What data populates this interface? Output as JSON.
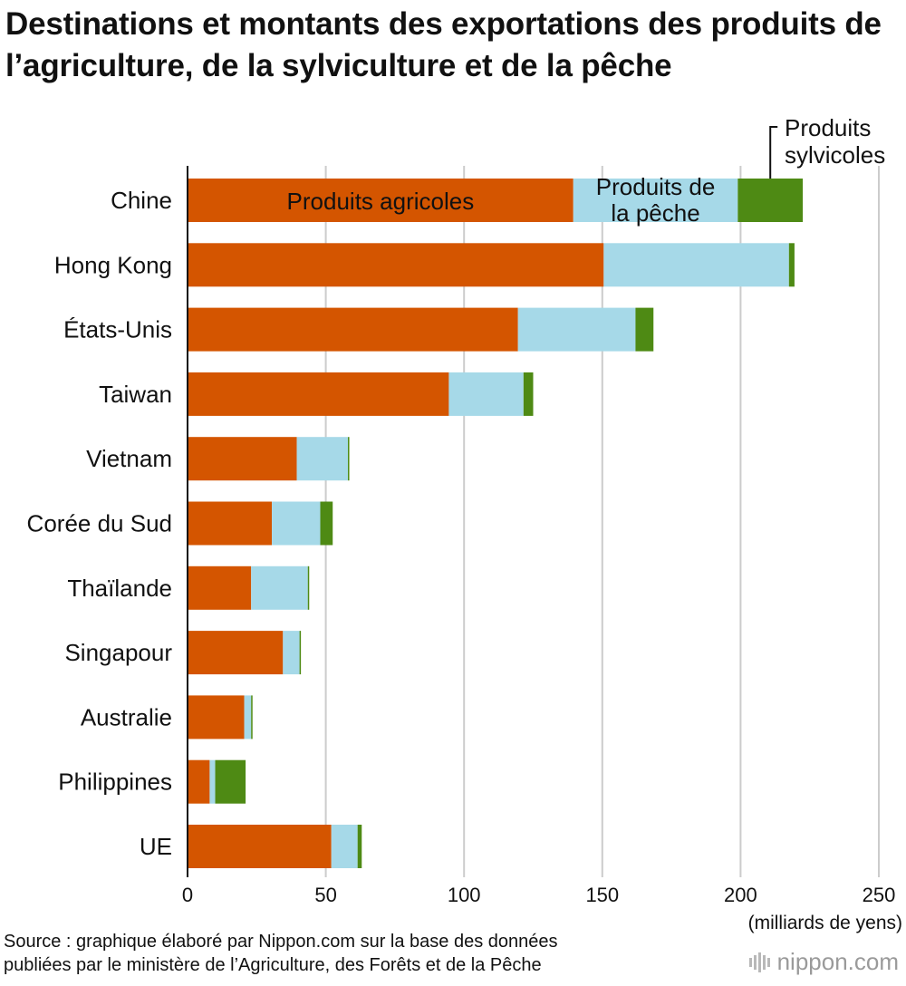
{
  "title": "Destinations et montants des exportations des produits de l’agriculture, de la sylviculture et de la pêche",
  "source_line1": "Source : graphique élaboré par Nippon.com sur la base des données",
  "source_line2": "publiées par le ministère de l’Agriculture, des Forêts et de la Pêche",
  "brand": "nippon.com",
  "colors": {
    "agricoles": "#D45500",
    "peche": "#A6D9E8",
    "sylvicoles": "#4E8A14",
    "grid": "#cccccc"
  },
  "chart_data": {
    "type": "bar",
    "orientation": "horizontal",
    "stacked": true,
    "categories": [
      "Chine",
      "Hong Kong",
      "États-Unis",
      "Taiwan",
      "Vietnam",
      "Corée du Sud",
      "Thaïlande",
      "Singapour",
      "Australie",
      "Philippines",
      "UE"
    ],
    "series": [
      {
        "name": "Produits agricoles",
        "color": "#D45500",
        "values": [
          139.5,
          150.5,
          119.5,
          94.5,
          39.5,
          30.5,
          23,
          34.5,
          20.5,
          8,
          52
        ]
      },
      {
        "name": "Produits de la pêche",
        "color": "#A6D9E8",
        "values": [
          59.5,
          67,
          42.5,
          27,
          18.5,
          17.5,
          20.5,
          6,
          2.5,
          2,
          9.5
        ]
      },
      {
        "name": "Produits sylvicoles",
        "color": "#4E8A14",
        "values": [
          23.5,
          2,
          6.5,
          3.5,
          0.5,
          4.5,
          0.5,
          0.5,
          0.5,
          11,
          1.5
        ]
      }
    ],
    "xlim": [
      0,
      250
    ],
    "xticks": [
      0,
      50,
      100,
      150,
      200,
      250
    ],
    "xlabel": "(milliards de yens)",
    "grid": true
  }
}
